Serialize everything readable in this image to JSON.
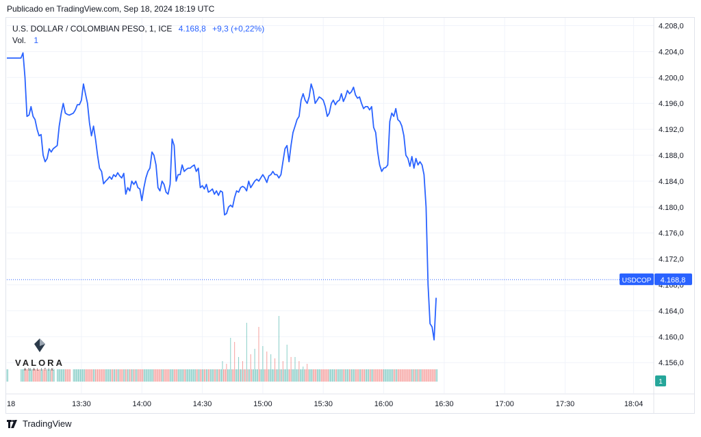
{
  "header": {
    "published": "Publicado en TradingView.com, Sep 18, 2024 18:19 UTC"
  },
  "legend": {
    "symbol": "U.S. DOLLAR / COLOMBIAN PESO, 1, ICE",
    "last": "4.168,8",
    "change": "+9,3 (+0,22%)",
    "vol_label": "Vol.",
    "vol_value": "1"
  },
  "watermark": {
    "name": "VALORA",
    "sub": "ANALITIK"
  },
  "footer": {
    "brand": "TradingView"
  },
  "colors": {
    "line": "#2962ff",
    "vol_up": "#26a69a",
    "vol_down": "#ef5350",
    "grid": "#f0f3fa",
    "price_tag": "#2962ff"
  },
  "chart_data": {
    "type": "line",
    "title": "U.S. DOLLAR / COLOMBIAN PESO, 1, ICE",
    "ticker": "USDCOP",
    "last_price": 4168.8,
    "last_price_label": "4.168,8",
    "volume_badge": "1",
    "y_ticks": [
      "4.208,0",
      "4.204,0",
      "4.200,0",
      "4.196,0",
      "4.192,0",
      "4.188,0",
      "4.184,0",
      "4.180,0",
      "4.176,0",
      "4.172,0",
      "4.168,0",
      "4.164,0",
      "4.160,0",
      "4.156,0"
    ],
    "y_tick_values": [
      4208,
      4204,
      4200,
      4196,
      4192,
      4188,
      4184,
      4180,
      4176,
      4172,
      4168,
      4164,
      4160,
      4156
    ],
    "x_ticks": [
      "18",
      "13:30",
      "14:00",
      "14:30",
      "15:00",
      "15:30",
      "16:00",
      "16:30",
      "17:00",
      "17:30",
      "18:04"
    ],
    "x_tick_minutes": [
      773,
      810,
      840,
      870,
      900,
      930,
      960,
      990,
      1020,
      1050,
      1084
    ],
    "ylim": [
      4155,
      4209
    ],
    "grid": true,
    "series": [
      {
        "values": [
          [
            773,
            4203
          ],
          [
            780,
            4203
          ],
          [
            781,
            4203.8
          ],
          [
            782,
            4200
          ],
          [
            783,
            4194
          ],
          [
            784,
            4194.2
          ],
          [
            785,
            4195.5
          ],
          [
            786,
            4194
          ],
          [
            787,
            4193.5
          ],
          [
            788,
            4192
          ],
          [
            789,
            4191
          ],
          [
            790,
            4191.2
          ],
          [
            791,
            4188
          ],
          [
            792,
            4187
          ],
          [
            793,
            4187.5
          ],
          [
            794,
            4189
          ],
          [
            795,
            4188.5
          ],
          [
            796,
            4189
          ],
          [
            798,
            4189.5
          ],
          [
            799,
            4192.5
          ],
          [
            800,
            4194.5
          ],
          [
            801,
            4196
          ],
          [
            802,
            4194.5
          ],
          [
            803,
            4194.3
          ],
          [
            804,
            4194.2
          ],
          [
            806,
            4194.5
          ],
          [
            807,
            4195
          ],
          [
            808,
            4195.8
          ],
          [
            809,
            4195.8
          ],
          [
            810,
            4196.5
          ],
          [
            811,
            4199
          ],
          [
            812,
            4197.5
          ],
          [
            813,
            4196
          ],
          [
            814,
            4193
          ],
          [
            815,
            4191
          ],
          [
            816,
            4192.5
          ],
          [
            817,
            4190.5
          ],
          [
            818,
            4188
          ],
          [
            819,
            4186
          ],
          [
            820,
            4185.5
          ],
          [
            821,
            4183.6
          ],
          [
            822,
            4184
          ],
          [
            823,
            4184.3
          ],
          [
            824,
            4184.7
          ],
          [
            825,
            4184.3
          ],
          [
            826,
            4185
          ],
          [
            827,
            4184.7
          ],
          [
            828,
            4185.3
          ],
          [
            829,
            4184.8
          ],
          [
            830,
            4184.5
          ],
          [
            831,
            4185.2
          ],
          [
            832,
            4182
          ],
          [
            833,
            4183
          ],
          [
            834,
            4182.5
          ],
          [
            835,
            4184
          ],
          [
            836,
            4183.5
          ],
          [
            837,
            4184
          ],
          [
            838,
            4183
          ],
          [
            839,
            4182.8
          ],
          [
            840,
            4181
          ],
          [
            841,
            4183
          ],
          [
            842,
            4184.5
          ],
          [
            843,
            4185.5
          ],
          [
            844,
            4186
          ],
          [
            845,
            4188.5
          ],
          [
            846,
            4188
          ],
          [
            847,
            4186.5
          ],
          [
            848,
            4183
          ],
          [
            849,
            4182.5
          ],
          [
            850,
            4184
          ],
          [
            851,
            4183.5
          ],
          [
            852,
            4182.3
          ],
          [
            853,
            4182
          ],
          [
            854,
            4183.5
          ],
          [
            855,
            4190.5
          ],
          [
            856,
            4189.5
          ],
          [
            857,
            4184
          ],
          [
            858,
            4185
          ],
          [
            859,
            4185
          ],
          [
            860,
            4186.5
          ],
          [
            861,
            4185.5
          ],
          [
            862,
            4185.8
          ],
          [
            863,
            4186
          ],
          [
            864,
            4186
          ],
          [
            865,
            4186.3
          ],
          [
            866,
            4186.5
          ],
          [
            867,
            4185.5
          ],
          [
            868,
            4186
          ],
          [
            869,
            4183
          ],
          [
            870,
            4183.3
          ],
          [
            871,
            4182.8
          ],
          [
            872,
            4183.5
          ],
          [
            873,
            4182.3
          ],
          [
            874,
            4182.5
          ],
          [
            875,
            4182.8
          ],
          [
            876,
            4182
          ],
          [
            877,
            4182.5
          ],
          [
            878,
            4181.8
          ],
          [
            879,
            4182.5
          ],
          [
            880,
            4182.3
          ],
          [
            881,
            4178.8
          ],
          [
            882,
            4179
          ],
          [
            883,
            4180
          ],
          [
            884,
            4180.3
          ],
          [
            885,
            4180
          ],
          [
            886,
            4181.5
          ],
          [
            887,
            4182.5
          ],
          [
            888,
            4182.3
          ],
          [
            889,
            4183
          ],
          [
            890,
            4183.2
          ],
          [
            891,
            4183
          ],
          [
            892,
            4182.5
          ],
          [
            893,
            4184
          ],
          [
            894,
            4183
          ],
          [
            895,
            4183.5
          ],
          [
            896,
            4184
          ],
          [
            897,
            4184.3
          ],
          [
            898,
            4184
          ],
          [
            899,
            4184.5
          ],
          [
            900,
            4185
          ],
          [
            901,
            4184.5
          ],
          [
            902,
            4183.8
          ],
          [
            903,
            4184.8
          ],
          [
            904,
            4185
          ],
          [
            905,
            4185.5
          ],
          [
            906,
            4185
          ],
          [
            907,
            4185
          ],
          [
            908,
            4184.5
          ],
          [
            909,
            4185
          ],
          [
            910,
            4187
          ],
          [
            911,
            4189
          ],
          [
            912,
            4189.5
          ],
          [
            913,
            4187
          ],
          [
            914,
            4189.5
          ],
          [
            915,
            4191.5
          ],
          [
            916,
            4192.5
          ],
          [
            917,
            4193.5
          ],
          [
            918,
            4194
          ],
          [
            919,
            4196.5
          ],
          [
            920,
            4197.5
          ],
          [
            921,
            4196.5
          ],
          [
            922,
            4196
          ],
          [
            923,
            4197
          ],
          [
            924,
            4199
          ],
          [
            925,
            4198
          ],
          [
            926,
            4196
          ],
          [
            927,
            4196.5
          ],
          [
            928,
            4197
          ],
          [
            929,
            4196.8
          ],
          [
            930,
            4196.5
          ],
          [
            931,
            4195.5
          ],
          [
            932,
            4194
          ],
          [
            933,
            4194.5
          ],
          [
            934,
            4196
          ],
          [
            935,
            4196.5
          ],
          [
            936,
            4195.8
          ],
          [
            937,
            4196.3
          ],
          [
            938,
            4196.5
          ],
          [
            939,
            4197.5
          ],
          [
            940,
            4196.3
          ],
          [
            941,
            4197
          ],
          [
            942,
            4198
          ],
          [
            943,
            4197.5
          ],
          [
            944,
            4197.8
          ],
          [
            945,
            4198.5
          ],
          [
            946,
            4197.3
          ],
          [
            947,
            4196.8
          ],
          [
            948,
            4197
          ],
          [
            949,
            4196
          ],
          [
            950,
            4195.2
          ],
          [
            951,
            4195.5
          ],
          [
            952,
            4195.5
          ],
          [
            953,
            4195
          ],
          [
            954,
            4195.5
          ],
          [
            955,
            4192.3
          ],
          [
            956,
            4191.5
          ],
          [
            957,
            4188.5
          ],
          [
            958,
            4186.5
          ],
          [
            959,
            4185.5
          ],
          [
            960,
            4186
          ],
          [
            961,
            4186.1
          ],
          [
            962,
            4186.5
          ],
          [
            963,
            4193.2
          ],
          [
            964,
            4194.5
          ],
          [
            965,
            4194
          ],
          [
            966,
            4195.2
          ],
          [
            967,
            4193.5
          ],
          [
            968,
            4193.2
          ],
          [
            969,
            4192.5
          ],
          [
            970,
            4191
          ],
          [
            971,
            4188
          ],
          [
            972,
            4187.5
          ],
          [
            973,
            4186.3
          ],
          [
            974,
            4187.8
          ],
          [
            975,
            4186
          ],
          [
            976,
            4187.5
          ],
          [
            977,
            4186.5
          ],
          [
            978,
            4187
          ],
          [
            979,
            4186.5
          ],
          [
            980,
            4185
          ],
          [
            981,
            4180
          ],
          [
            982,
            4168
          ],
          [
            983,
            4162
          ],
          [
            984,
            4161.5
          ],
          [
            985,
            4159.5
          ],
          [
            986,
            4166
          ]
        ]
      }
    ],
    "volume": {
      "badge": "1",
      "bars": [
        [
          880,
          "up",
          30
        ],
        [
          882,
          "down",
          26
        ],
        [
          884,
          "up",
          64
        ],
        [
          886,
          "down",
          58
        ],
        [
          888,
          "up",
          36
        ],
        [
          890,
          "down",
          30
        ],
        [
          892,
          "up",
          86
        ],
        [
          894,
          "down",
          40
        ],
        [
          896,
          "up",
          48
        ],
        [
          898,
          "down",
          80
        ],
        [
          900,
          "up",
          52
        ],
        [
          902,
          "down",
          44
        ],
        [
          904,
          "up",
          40
        ],
        [
          906,
          "down",
          34
        ],
        [
          908,
          "up",
          96
        ],
        [
          910,
          "down",
          30
        ],
        [
          912,
          "up",
          54
        ],
        [
          914,
          "down",
          36
        ],
        [
          916,
          "up",
          36
        ],
        [
          918,
          "down",
          30
        ],
        [
          920,
          "up",
          22
        ],
        [
          922,
          "down",
          26
        ]
      ]
    }
  }
}
